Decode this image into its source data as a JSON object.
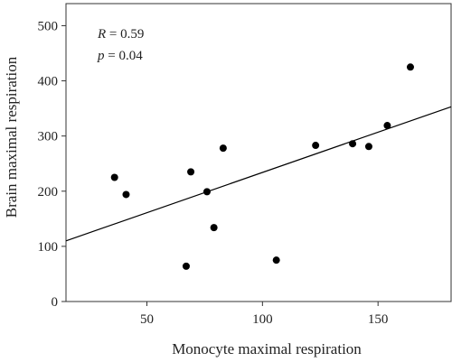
{
  "chart_data": {
    "type": "scatter",
    "xlabel": "Monocyte maximal respiration",
    "ylabel": "Brain maximal respiration",
    "xlim": [
      15,
      182
    ],
    "ylim": [
      0,
      540
    ],
    "xticks": [
      50,
      100,
      150
    ],
    "yticks": [
      0,
      100,
      200,
      300,
      400,
      500
    ],
    "x_tick_labels": [
      "50",
      "100",
      "150"
    ],
    "y_tick_labels": [
      "0",
      "100",
      "200",
      "300",
      "400",
      "500"
    ],
    "grid": false,
    "colors": {
      "points": "#000000",
      "line": "#000000",
      "axes": "#333333"
    },
    "points": [
      {
        "x": 36,
        "y": 225
      },
      {
        "x": 41,
        "y": 194
      },
      {
        "x": 67,
        "y": 64
      },
      {
        "x": 69,
        "y": 235
      },
      {
        "x": 76,
        "y": 199
      },
      {
        "x": 79,
        "y": 134
      },
      {
        "x": 83,
        "y": 278
      },
      {
        "x": 106,
        "y": 75
      },
      {
        "x": 123,
        "y": 283
      },
      {
        "x": 139,
        "y": 286
      },
      {
        "x": 146,
        "y": 281
      },
      {
        "x": 154,
        "y": 319
      },
      {
        "x": 164,
        "y": 425
      }
    ],
    "regression_line": {
      "x": [
        15,
        182
      ],
      "y": [
        110,
        353
      ]
    },
    "annotations": {
      "r_symbol": "R",
      "r_text": " = 0.59",
      "p_symbol": "p",
      "p_text": " = 0.04"
    }
  }
}
